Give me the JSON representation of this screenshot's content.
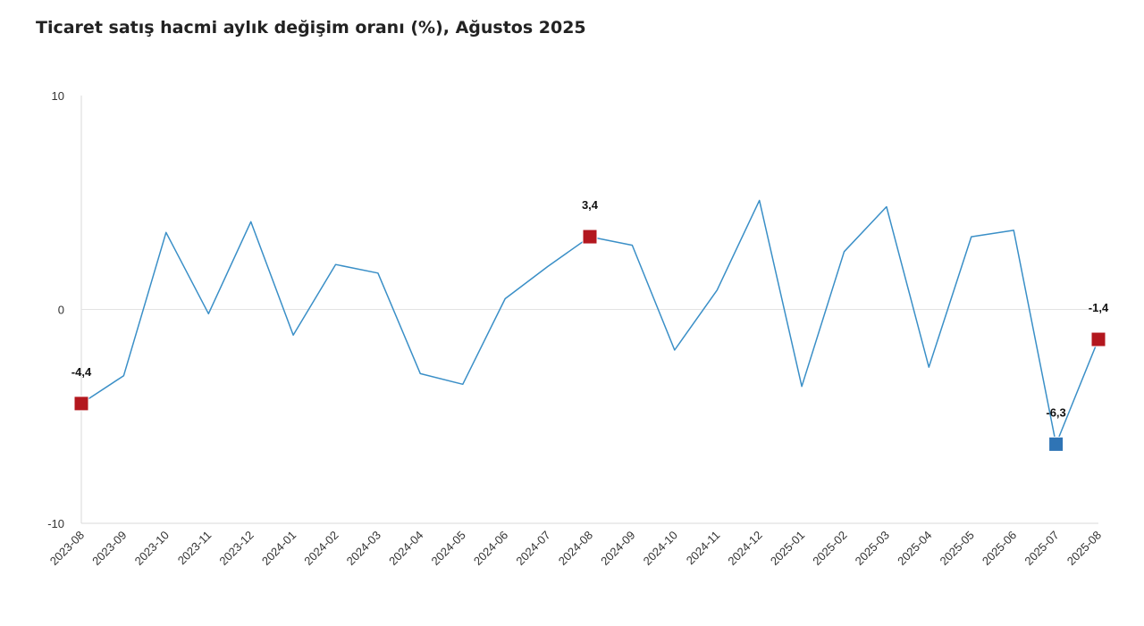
{
  "chart_data": {
    "type": "line",
    "title": "Ticaret satış hacmi aylık değişim oranı (%), Ağustos 2025",
    "xlabel": "",
    "ylabel": "",
    "ylim": [
      -10,
      10
    ],
    "yticks": [
      10,
      0,
      -10
    ],
    "grid": "zero-line only",
    "categories": [
      "2023-08",
      "2023-09",
      "2023-10",
      "2023-11",
      "2023-12",
      "2024-01",
      "2024-02",
      "2024-03",
      "2024-04",
      "2024-05",
      "2024-06",
      "2024-07",
      "2024-08",
      "2024-09",
      "2024-10",
      "2024-11",
      "2024-12",
      "2025-01",
      "2025-02",
      "2025-03",
      "2025-04",
      "2025-05",
      "2025-06",
      "2025-07",
      "2025-08"
    ],
    "series": [
      {
        "name": "Ticaret satış hacmi aylık değişim oranı (%)",
        "color": "#3a8fc7",
        "values": [
          -4.4,
          -3.1,
          3.6,
          -0.2,
          4.1,
          -1.2,
          2.1,
          1.7,
          -3.0,
          -3.5,
          0.5,
          2.0,
          3.4,
          3.0,
          -1.9,
          0.9,
          5.1,
          -3.6,
          2.7,
          4.8,
          -2.7,
          3.4,
          3.7,
          -6.3,
          -1.4
        ]
      }
    ],
    "highlighted_points": [
      {
        "index": 0,
        "label": "-4,4",
        "color": "#b3171e"
      },
      {
        "index": 12,
        "label": "3,4",
        "color": "#b3171e"
      },
      {
        "index": 23,
        "label": "-6,3",
        "color": "#2f74b5"
      },
      {
        "index": 24,
        "label": "-1,4",
        "color": "#b3171e"
      }
    ]
  }
}
